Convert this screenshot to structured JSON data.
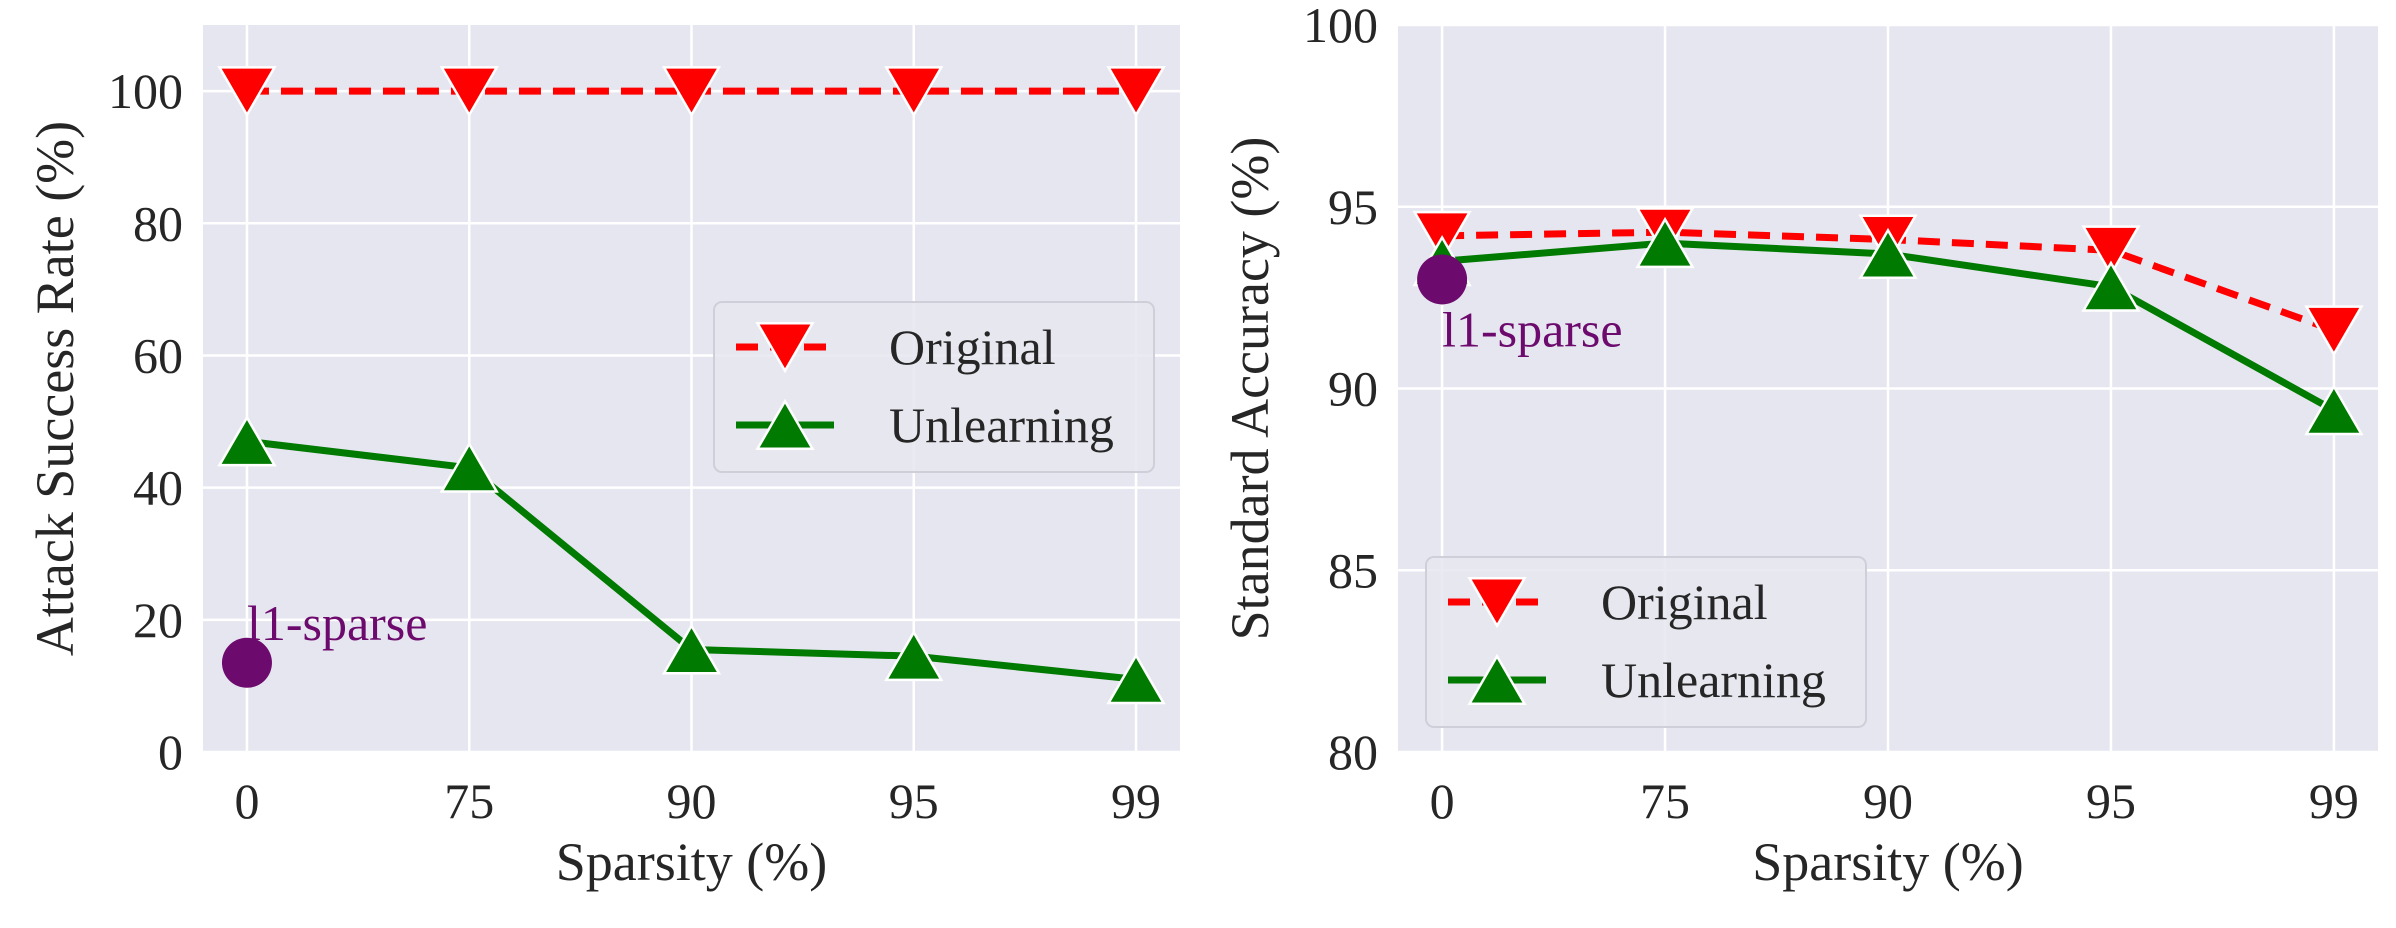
{
  "colors": {
    "background": "#ffffff",
    "plot_bg": "#e6e6f0",
    "grid": "#ffffff",
    "original": "#ff0000",
    "unlearning": "#007a00",
    "l1_sparse": "#6d0a6d",
    "text": "#262626"
  },
  "chart_data": [
    {
      "type": "line",
      "categories": [
        "0",
        "75",
        "90",
        "95",
        "99"
      ],
      "xlabel": "Sparsity (%)",
      "ylabel": "Attack Success Rate (%)",
      "ylim": [
        0,
        110
      ],
      "yticks": [
        "0",
        "20",
        "40",
        "60",
        "80",
        "100"
      ],
      "grid": true,
      "legend_position": "right",
      "series": [
        {
          "name": "Original",
          "values": [
            100,
            100,
            100,
            100,
            100
          ],
          "style": "dashed",
          "marker": "triangle-down",
          "color": "#ff0000"
        },
        {
          "name": "Unlearning",
          "values": [
            47,
            43,
            15.5,
            14.5,
            11
          ],
          "style": "solid",
          "marker": "triangle-up",
          "color": "#007a00"
        }
      ],
      "annotations": [
        {
          "text": "l1-sparse",
          "category": "0",
          "value": 13.5,
          "marker": "circle",
          "color": "#6d0a6d"
        }
      ]
    },
    {
      "type": "line",
      "categories": [
        "0",
        "75",
        "90",
        "95",
        "99"
      ],
      "xlabel": "Sparsity (%)",
      "ylabel": "Standard Accuracy (%)",
      "ylim": [
        80,
        100
      ],
      "yticks": [
        "80",
        "85",
        "90",
        "95",
        "100"
      ],
      "grid": true,
      "legend_position": "lower left",
      "series": [
        {
          "name": "Original",
          "values": [
            94.2,
            94.3,
            94.1,
            93.8,
            91.6
          ],
          "style": "dashed",
          "marker": "triangle-down",
          "color": "#ff0000"
        },
        {
          "name": "Unlearning",
          "values": [
            93.5,
            94.0,
            93.7,
            92.8,
            89.4
          ],
          "style": "solid",
          "marker": "triangle-up",
          "color": "#007a00"
        }
      ],
      "annotations": [
        {
          "text": "l1-sparse",
          "category": "0",
          "value": 93.0,
          "marker": "circle",
          "color": "#6d0a6d"
        }
      ]
    }
  ]
}
